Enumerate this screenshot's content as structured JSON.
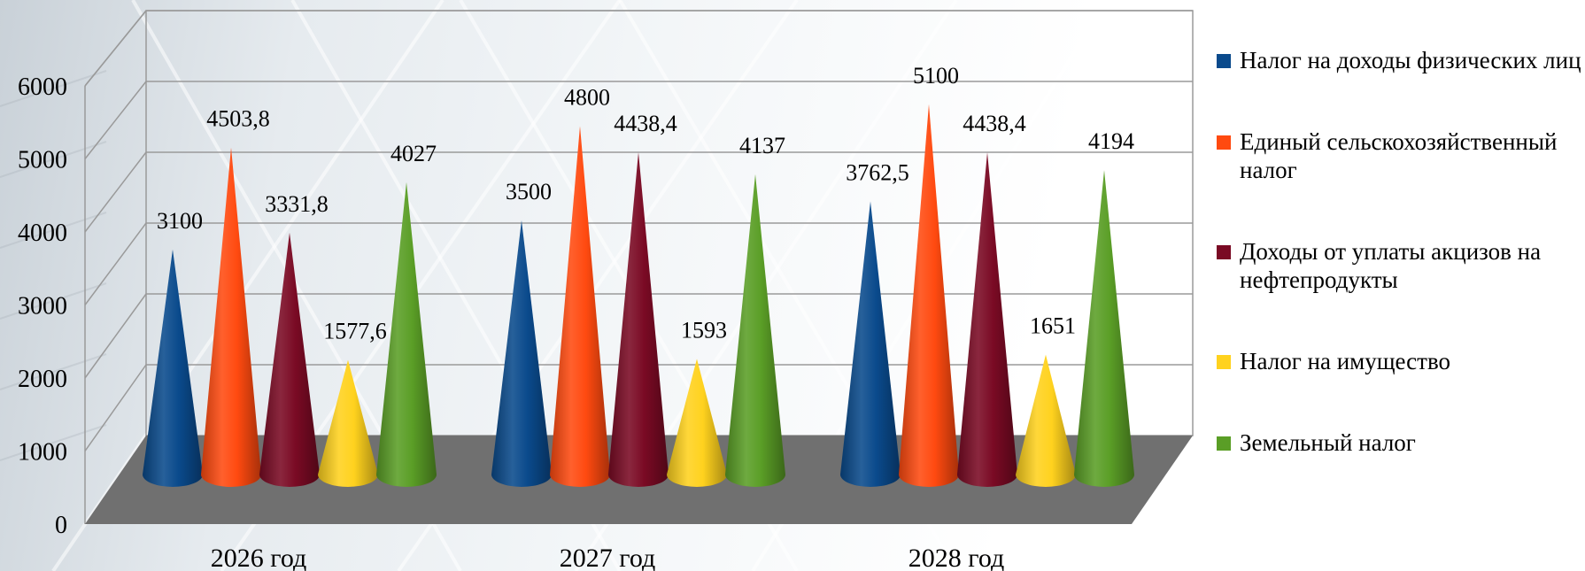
{
  "chart_data": {
    "type": "bar",
    "bar_shape": "cone",
    "categories": [
      "2026 год",
      "2027 год",
      "2028 год"
    ],
    "series": [
      {
        "name": "Налог на доходы физических лиц",
        "color": "#0a4a8c",
        "values": [
          3100,
          3500,
          3762.5
        ],
        "labels": [
          "3100",
          "3500",
          "3762,5"
        ]
      },
      {
        "name": "Единый сельскохозяйственный налог",
        "color": "#ff4a10",
        "values": [
          4503.8,
          4800,
          5100
        ],
        "labels": [
          "4503,8",
          "4800",
          "5100"
        ]
      },
      {
        "name": "Доходы от уплаты акцизов на нефтепродукты",
        "color": "#7a0a24",
        "values": [
          3331.8,
          4438.4,
          4438.4
        ],
        "labels": [
          "3331,8",
          "4438,4",
          "4438,4"
        ]
      },
      {
        "name": "Налог на имущество",
        "color": "#ffd21e",
        "values": [
          1577.6,
          1593,
          1651
        ],
        "labels": [
          "1577,6",
          "1593",
          "1651"
        ]
      },
      {
        "name": "Земельный налог",
        "color": "#5a9e26",
        "values": [
          4027,
          4137,
          4194
        ],
        "labels": [
          "4027",
          "4137",
          "4194"
        ]
      }
    ],
    "y_ticks": [
      "0",
      "1000",
      "2000",
      "3000",
      "4000",
      "5000",
      "6000"
    ],
    "ylim": [
      0,
      6000
    ],
    "grid": true,
    "legend_position": "right"
  }
}
